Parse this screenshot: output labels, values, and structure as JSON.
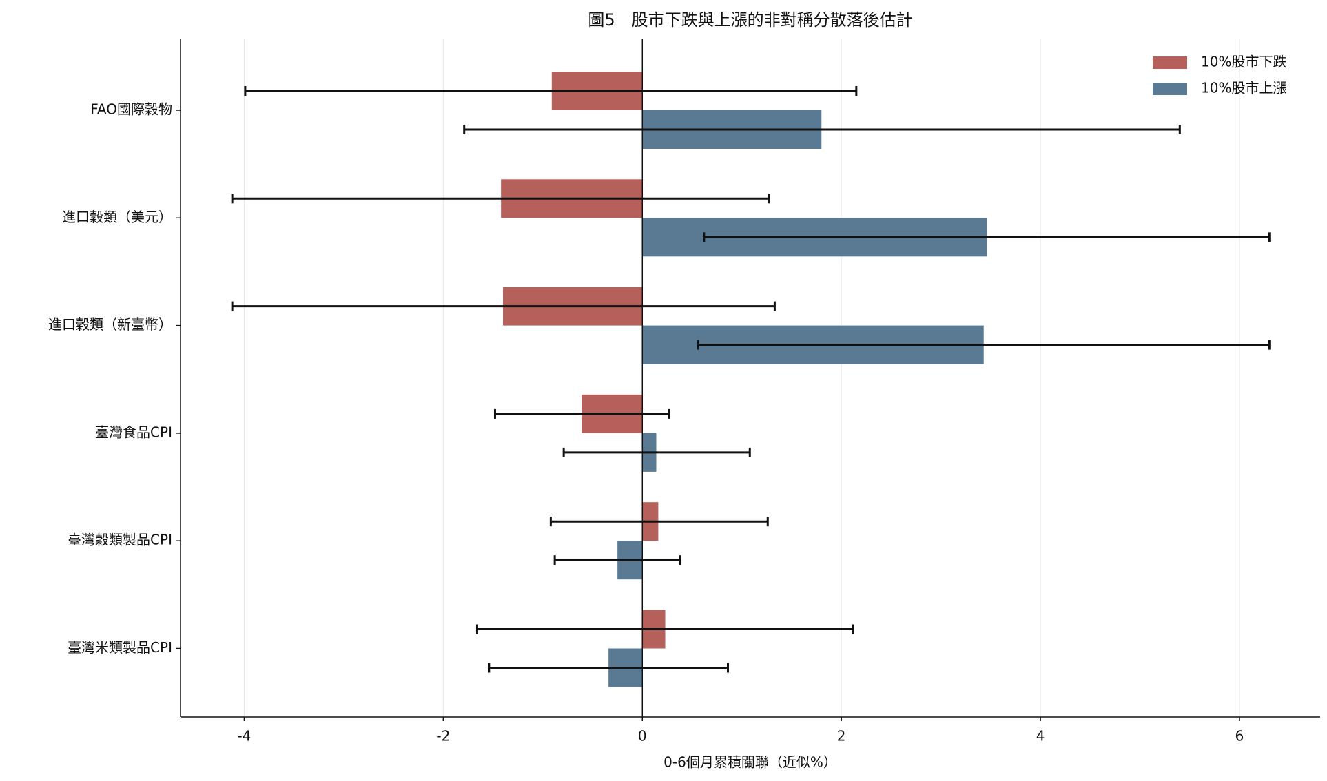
{
  "chart_data": {
    "type": "bar",
    "orientation": "horizontal",
    "title": "圖5　股市下跌與上漲的非對稱分散落後估計",
    "x_label": "0-6個月累積關聯（近似%）",
    "categories": [
      "FAO國際穀物",
      "進口穀類（美元）",
      "進口穀類（新臺幣）",
      "臺灣食品CPI",
      "臺灣穀類製品CPI",
      "臺灣米類製品CPI"
    ],
    "series": [
      {
        "name": "10%股市下跌",
        "color": "#b5605a",
        "values": [
          -0.91,
          -1.42,
          -1.4,
          -0.61,
          0.16,
          0.23
        ],
        "ci_low": [
          -3.99,
          -4.12,
          -4.12,
          -1.48,
          -0.92,
          -1.66
        ],
        "ci_high": [
          2.15,
          1.27,
          1.33,
          0.27,
          1.26,
          2.12
        ]
      },
      {
        "name": "10%股市上漲",
        "color": "#5a7a94",
        "values": [
          1.8,
          3.46,
          3.43,
          0.14,
          -0.25,
          -0.34
        ],
        "ci_low": [
          -1.79,
          0.62,
          0.56,
          -0.79,
          -0.88,
          -1.54
        ],
        "ci_high": [
          5.4,
          6.3,
          6.3,
          1.08,
          0.38,
          0.86
        ]
      }
    ],
    "xlim": [
      -4.64,
      6.81
    ],
    "xticks": [
      -4,
      -2,
      0,
      2,
      4,
      6
    ],
    "grid": true,
    "legend": "upper right"
  }
}
